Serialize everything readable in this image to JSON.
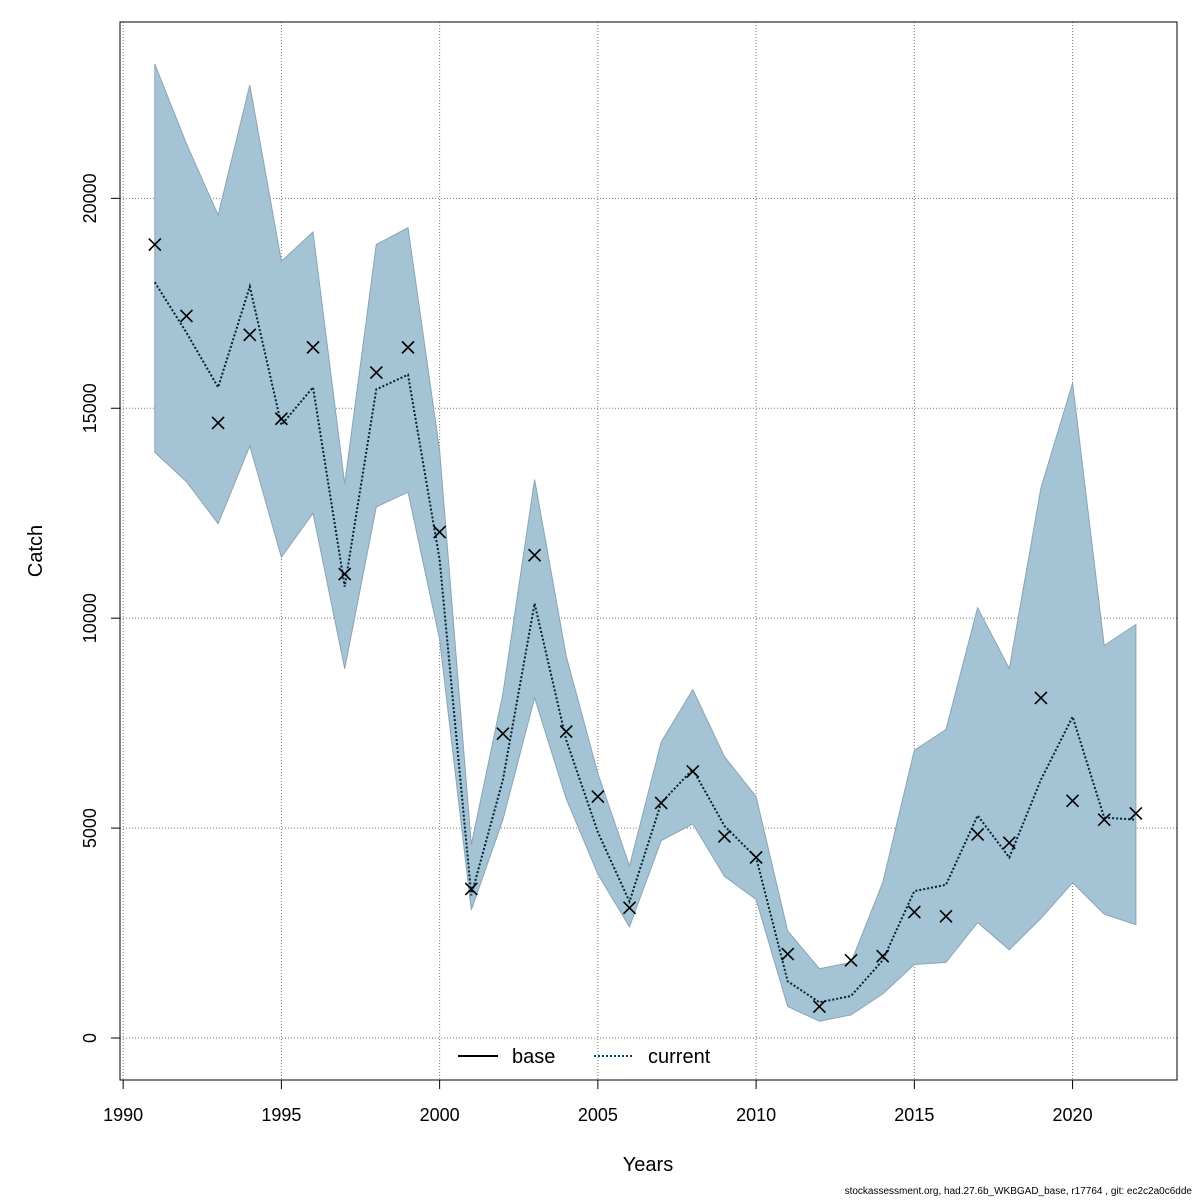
{
  "chart_data": {
    "type": "line",
    "xlabel": "Years",
    "ylabel": "Catch",
    "xlim": [
      1989.9,
      2023.3
    ],
    "ylim": [
      -1000,
      24200
    ],
    "x_ticks": [
      1990,
      1995,
      2000,
      2005,
      2010,
      2015,
      2020
    ],
    "y_ticks": [
      0,
      5000,
      10000,
      15000,
      20000
    ],
    "grid": true,
    "legend": {
      "placement": "bottom",
      "entries": [
        {
          "label": "base",
          "style": "solid",
          "color": "#000000"
        },
        {
          "label": "current",
          "style": "dotted",
          "color": "#004466"
        }
      ]
    },
    "band_color": "#a4c3d4",
    "years": [
      1991,
      1992,
      1993,
      1994,
      1995,
      1996,
      1997,
      1998,
      1999,
      2000,
      2001,
      2002,
      2003,
      2004,
      2005,
      2006,
      2007,
      2008,
      2009,
      2010,
      2011,
      2012,
      2013,
      2014,
      2015,
      2016,
      2017,
      2018,
      2019,
      2020,
      2021,
      2022
    ],
    "series": [
      {
        "name": "current",
        "values": [
          18000,
          16800,
          15500,
          17900,
          14600,
          15500,
          10750,
          15450,
          15800,
          11400,
          3400,
          6150,
          10350,
          7100,
          4900,
          3250,
          5600,
          6400,
          5050,
          4300,
          1350,
          850,
          1000,
          1850,
          3500,
          3650,
          5300,
          4300,
          6150,
          7650,
          5250,
          5200
        ]
      },
      {
        "name": "upper",
        "values": [
          23200,
          21300,
          19600,
          22700,
          18500,
          19200,
          13200,
          18900,
          19300,
          14000,
          4600,
          8200,
          13300,
          9100,
          6300,
          4100,
          7050,
          8300,
          6700,
          5750,
          2550,
          1650,
          1800,
          3700,
          6850,
          7350,
          10250,
          8800,
          13100,
          15600,
          9350,
          9850
        ]
      },
      {
        "name": "lower",
        "values": [
          13950,
          13250,
          12250,
          14100,
          11450,
          12500,
          8800,
          12650,
          13000,
          9500,
          3050,
          5200,
          8100,
          5700,
          3900,
          2650,
          4700,
          5100,
          3850,
          3300,
          750,
          400,
          550,
          1050,
          1750,
          1800,
          2750,
          2100,
          2850,
          3700,
          2950,
          2700
        ]
      },
      {
        "name": "observed",
        "values": [
          18900,
          17200,
          14650,
          16750,
          14750,
          16450,
          11050,
          15850,
          16450,
          12050,
          3550,
          7250,
          11500,
          7300,
          5750,
          3100,
          5600,
          6350,
          4800,
          4300,
          2000,
          750,
          1850,
          1950,
          3000,
          2900,
          4850,
          4650,
          8100,
          5650,
          5200,
          5350
        ]
      }
    ]
  },
  "footnote": "stockassessment.org, had.27.6b_WKBGAD_base, r17764 , git: ec2c2a0c6dde"
}
